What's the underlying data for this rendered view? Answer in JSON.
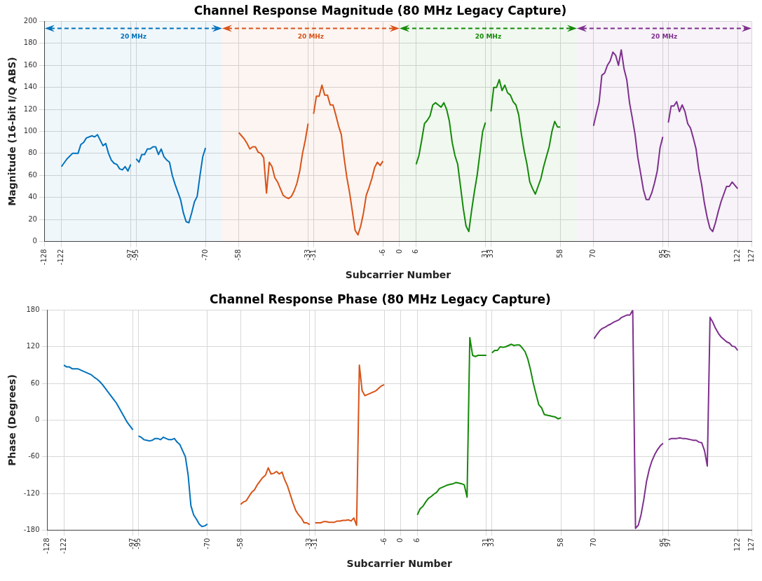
{
  "chart_data": [
    {
      "type": "line",
      "title": "Channel Response Magnitude (80 MHz Legacy Capture)",
      "xlabel": "Subcarrier Number",
      "ylabel": "Magnitude (16-bit I/Q ABS)",
      "xlim": [
        -128,
        127
      ],
      "xticks": [
        -128,
        -122,
        -97,
        -95,
        -70,
        -58,
        -33,
        -31,
        -6,
        0,
        6,
        31,
        33,
        58,
        70,
        95,
        97,
        122,
        127
      ],
      "ylim": [
        0,
        200
      ],
      "yticks": [
        0,
        20,
        40,
        60,
        80,
        100,
        120,
        140,
        160,
        180,
        200
      ],
      "grid": true,
      "legend": false,
      "bands": [
        {
          "axis": "x",
          "from": -128,
          "to": -64,
          "label": "20 MHz",
          "color": "#0072bd"
        },
        {
          "axis": "x",
          "from": -64,
          "to": 0,
          "label": "20 MHz",
          "color": "#d95319"
        },
        {
          "axis": "x",
          "from": 0,
          "to": 64,
          "label": "20 MHz",
          "color": "#138a07"
        },
        {
          "axis": "x",
          "from": 64,
          "to": 127,
          "label": "20 MHz",
          "color": "#7e2f8e"
        }
      ],
      "series": [
        {
          "color": "#0072bd",
          "x": [
            -122,
            -120,
            -118,
            -116,
            -115,
            -114,
            -113,
            -111,
            -110,
            -109,
            -107,
            -106,
            -105,
            -104,
            -103,
            -102,
            -101,
            -100,
            -99,
            -98,
            -97,
            -96,
            -95,
            -94,
            -93,
            -92,
            -91,
            -90,
            -89,
            -88,
            -87,
            -86,
            -85,
            -84,
            -83,
            -82,
            -81,
            -80,
            -79,
            -78,
            -77,
            -76,
            -75,
            -74,
            -73,
            -72,
            -71,
            -70
          ],
          "values": [
            68,
            75,
            80,
            80,
            88,
            90,
            94,
            96,
            95,
            97,
            87,
            89,
            80,
            74,
            71,
            70,
            66,
            65,
            68,
            64,
            70,
            null,
            75,
            72,
            79,
            79,
            84,
            84,
            86,
            86,
            79,
            84,
            77,
            74,
            72,
            60,
            52,
            45,
            38,
            26,
            18,
            17,
            26,
            36,
            41,
            60,
            77,
            85
          ]
        },
        {
          "color": "#d95319",
          "x": [
            -58,
            -57,
            -56,
            -55,
            -54,
            -53,
            -52,
            -51,
            -50,
            -49,
            -48,
            -47,
            -46,
            -45,
            -44,
            -43,
            -42,
            -41,
            -40,
            -39,
            -38,
            -37,
            -36,
            -35,
            -34,
            -33,
            -32,
            -31,
            -30,
            -29,
            -28,
            -27,
            -26,
            -25,
            -24,
            -23,
            -22,
            -21,
            -20,
            -19,
            -18,
            -17,
            -16,
            -15,
            -14,
            -13,
            -12,
            -11,
            -10,
            -9,
            -8,
            -7,
            -6
          ],
          "values": [
            99,
            96,
            93,
            89,
            84,
            86,
            86,
            81,
            80,
            76,
            44,
            72,
            68,
            58,
            54,
            48,
            42,
            40,
            39,
            41,
            46,
            53,
            64,
            80,
            92,
            107,
            null,
            116,
            132,
            132,
            142,
            133,
            133,
            124,
            124,
            115,
            105,
            97,
            76,
            58,
            44,
            27,
            10,
            6,
            14,
            26,
            42,
            49,
            57,
            67,
            72,
            69,
            73
          ]
        },
        {
          "color": "#138a07",
          "x": [
            6,
            7,
            8,
            9,
            10,
            11,
            12,
            13,
            14,
            15,
            16,
            17,
            18,
            19,
            20,
            21,
            22,
            23,
            24,
            25,
            26,
            27,
            28,
            29,
            30,
            31,
            32,
            33,
            34,
            35,
            36,
            37,
            38,
            39,
            40,
            41,
            42,
            43,
            44,
            45,
            46,
            47,
            48,
            49,
            50,
            51,
            52,
            53,
            54,
            55,
            56,
            57,
            58
          ],
          "values": [
            70,
            78,
            92,
            107,
            110,
            114,
            124,
            126,
            124,
            122,
            126,
            120,
            109,
            90,
            78,
            70,
            50,
            30,
            14,
            9,
            28,
            45,
            60,
            80,
            100,
            108,
            null,
            118,
            140,
            140,
            147,
            137,
            142,
            135,
            133,
            127,
            124,
            115,
            97,
            82,
            70,
            54,
            48,
            43,
            50,
            57,
            68,
            77,
            86,
            100,
            109,
            104,
            104
          ]
        },
        {
          "color": "#7e2f8e",
          "x": [
            70,
            71,
            72,
            73,
            74,
            75,
            76,
            77,
            78,
            79,
            80,
            81,
            82,
            83,
            84,
            85,
            86,
            87,
            88,
            89,
            90,
            91,
            92,
            93,
            94,
            95,
            96,
            97,
            98,
            99,
            100,
            101,
            102,
            103,
            104,
            105,
            106,
            107,
            108,
            109,
            110,
            111,
            112,
            113,
            114,
            115,
            116,
            117,
            118,
            119,
            120,
            121,
            122
          ],
          "values": [
            105,
            116,
            126,
            151,
            153,
            160,
            164,
            172,
            169,
            160,
            174,
            157,
            147,
            126,
            112,
            97,
            76,
            62,
            47,
            38,
            38,
            44,
            53,
            64,
            85,
            95,
            null,
            108,
            123,
            123,
            127,
            118,
            124,
            118,
            107,
            103,
            94,
            84,
            65,
            52,
            35,
            22,
            12,
            9,
            17,
            27,
            36,
            43,
            50,
            50,
            54,
            51,
            48
          ]
        }
      ]
    },
    {
      "type": "line",
      "title": "Channel Response Phase (80 MHz Legacy Capture)",
      "xlabel": "Subcarrier Number",
      "ylabel": "Phase (Degrees)",
      "xlim": [
        -128,
        127
      ],
      "xticks": [
        -128,
        -122,
        -97,
        -95,
        -70,
        -58,
        -33,
        -31,
        -6,
        0,
        6,
        31,
        33,
        58,
        70,
        95,
        97,
        122,
        127
      ],
      "ylim": [
        -180,
        180
      ],
      "yticks": [
        -180,
        -120,
        -60,
        0,
        60,
        120,
        180
      ],
      "grid": true,
      "legend": false,
      "series": [
        {
          "color": "#0072bd",
          "x": [
            -122,
            -121,
            -120,
            -119,
            -118,
            -117,
            -116,
            -115,
            -114,
            -113,
            -112,
            -111,
            -110,
            -109,
            -108,
            -107,
            -106,
            -105,
            -104,
            -103,
            -102,
            -101,
            -100,
            -99,
            -98,
            -97,
            -96,
            -95,
            -94,
            -93,
            -92,
            -91,
            -90,
            -89,
            -88,
            -87,
            -86,
            -85,
            -84,
            -83,
            -82,
            -81,
            -80,
            -79,
            -78,
            -77,
            -76,
            -75,
            -74,
            -73,
            -72,
            -71,
            -70
          ],
          "values": [
            90,
            87,
            87,
            84,
            84,
            84,
            82,
            80,
            78,
            76,
            74,
            70,
            67,
            63,
            58,
            52,
            46,
            40,
            34,
            28,
            20,
            12,
            4,
            -4,
            -10,
            -16,
            null,
            -26,
            -28,
            -32,
            -33,
            -34,
            -33,
            -30,
            -30,
            -32,
            -28,
            -30,
            -32,
            -32,
            -30,
            -36,
            -40,
            -50,
            -60,
            -90,
            -140,
            -155,
            -162,
            -170,
            -174,
            -173,
            -170
          ]
        },
        {
          "color": "#d95319",
          "x": [
            -58,
            -57,
            -56,
            -55,
            -54,
            -53,
            -52,
            -51,
            -50,
            -49,
            -48,
            -47,
            -46,
            -45,
            -44,
            -43,
            -42,
            -41,
            -40,
            -39,
            -38,
            -37,
            -36,
            -35,
            -34,
            -33,
            -32,
            -31,
            -30,
            -29,
            -28,
            -27,
            -26,
            -25,
            -24,
            -23,
            -22,
            -21,
            -20,
            -19,
            -18,
            -17,
            -16,
            -15,
            -14,
            -13,
            -12,
            -11,
            -10,
            -9,
            -8,
            -7,
            -6
          ],
          "values": [
            -138,
            -134,
            -132,
            -125,
            -118,
            -114,
            -106,
            -100,
            -94,
            -90,
            -78,
            -88,
            -87,
            -84,
            -88,
            -85,
            -98,
            -108,
            -122,
            -136,
            -148,
            -155,
            -160,
            -168,
            -168,
            -171,
            null,
            -168,
            -168,
            -168,
            -166,
            -166,
            -167,
            -167,
            -167,
            -165,
            -165,
            -164,
            -164,
            -163,
            -165,
            -160,
            -172,
            90,
            48,
            40,
            42,
            44,
            46,
            48,
            52,
            56,
            58
          ]
        },
        {
          "color": "#138a07",
          "x": [
            6,
            7,
            8,
            9,
            10,
            11,
            12,
            13,
            14,
            15,
            16,
            17,
            18,
            19,
            20,
            21,
            22,
            23,
            24,
            25,
            26,
            27,
            28,
            29,
            30,
            31,
            32,
            33,
            34,
            35,
            36,
            37,
            38,
            39,
            40,
            41,
            42,
            43,
            44,
            45,
            46,
            47,
            48,
            49,
            50,
            51,
            52,
            53,
            54,
            55,
            56,
            57,
            58
          ],
          "values": [
            -155,
            -145,
            -141,
            -134,
            -128,
            -125,
            -121,
            -118,
            -112,
            -110,
            -108,
            -106,
            -105,
            -104,
            -102,
            -103,
            -104,
            -106,
            -126,
            135,
            106,
            104,
            106,
            106,
            106,
            106,
            null,
            110,
            114,
            114,
            120,
            119,
            120,
            122,
            124,
            122,
            123,
            123,
            118,
            112,
            100,
            82,
            60,
            42,
            25,
            20,
            9,
            8,
            7,
            6,
            5,
            2,
            4
          ]
        },
        {
          "color": "#7e2f8e",
          "x": [
            70,
            71,
            72,
            73,
            74,
            75,
            76,
            77,
            78,
            79,
            80,
            81,
            82,
            83,
            84,
            85,
            86,
            87,
            88,
            89,
            90,
            91,
            92,
            93,
            94,
            95,
            96,
            97,
            98,
            99,
            100,
            101,
            102,
            103,
            104,
            105,
            106,
            107,
            108,
            109,
            110,
            111,
            112,
            113,
            114,
            115,
            116,
            117,
            118,
            119,
            120,
            121,
            122
          ],
          "values": [
            133,
            140,
            146,
            150,
            152,
            155,
            157,
            160,
            162,
            164,
            168,
            170,
            172,
            172,
            180,
            -177,
            -172,
            -155,
            -130,
            -100,
            -80,
            -66,
            -56,
            -48,
            -42,
            -38,
            null,
            -32,
            -30,
            -30,
            -30,
            -29,
            -30,
            -30,
            -31,
            -32,
            -33,
            -33,
            -36,
            -37,
            -50,
            -75,
            168,
            160,
            150,
            142,
            136,
            132,
            128,
            126,
            121,
            120,
            114
          ]
        }
      ]
    }
  ]
}
